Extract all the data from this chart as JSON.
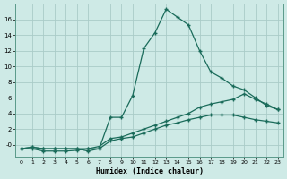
{
  "title": "",
  "xlabel": "Humidex (Indice chaleur)",
  "ylabel": "",
  "bg_color": "#ceeae6",
  "line_color": "#1a6b5a",
  "grid_color": "#aaccc8",
  "xlim": [
    -0.5,
    23.5
  ],
  "ylim": [
    -1.5,
    18
  ],
  "xticks": [
    0,
    1,
    2,
    3,
    4,
    5,
    6,
    7,
    8,
    9,
    10,
    11,
    12,
    13,
    14,
    15,
    16,
    17,
    18,
    19,
    20,
    21,
    22,
    23
  ],
  "yticks": [
    0,
    2,
    4,
    6,
    8,
    10,
    12,
    14,
    16
  ],
  "ytick_labels": [
    "-0",
    "2",
    "4",
    "6",
    "8",
    "10",
    "12",
    "14",
    "16"
  ],
  "line1_x": [
    0,
    1,
    2,
    3,
    4,
    5,
    6,
    7,
    8,
    9,
    10,
    11,
    12,
    13,
    14,
    15,
    16,
    17,
    18,
    19,
    20,
    21,
    22,
    23
  ],
  "line1_y": [
    -0.5,
    -0.5,
    -0.8,
    -0.8,
    -0.8,
    -0.7,
    -0.5,
    -0.5,
    3.5,
    3.5,
    6.3,
    12.3,
    14.3,
    17.3,
    16.3,
    15.3,
    12.0,
    9.3,
    8.5,
    7.5,
    7.0,
    6.0,
    5.0,
    4.5
  ],
  "line2_x": [
    0,
    1,
    2,
    3,
    4,
    5,
    6,
    7,
    8,
    9,
    10,
    11,
    12,
    13,
    14,
    15,
    16,
    17,
    18,
    19,
    20,
    21,
    22,
    23
  ],
  "line2_y": [
    -0.5,
    -0.3,
    -0.5,
    -0.5,
    -0.5,
    -0.5,
    -0.5,
    -0.2,
    0.8,
    1.0,
    1.5,
    2.0,
    2.5,
    3.0,
    3.5,
    4.0,
    4.8,
    5.2,
    5.5,
    5.8,
    6.5,
    5.8,
    5.2,
    4.5
  ],
  "line3_x": [
    0,
    1,
    2,
    3,
    4,
    5,
    6,
    7,
    8,
    9,
    10,
    11,
    12,
    13,
    14,
    15,
    16,
    17,
    18,
    19,
    20,
    21,
    22,
    23
  ],
  "line3_y": [
    -0.5,
    -0.3,
    -0.5,
    -0.5,
    -0.5,
    -0.5,
    -0.8,
    -0.5,
    0.5,
    0.8,
    1.0,
    1.5,
    2.0,
    2.5,
    2.8,
    3.2,
    3.5,
    3.8,
    3.8,
    3.8,
    3.5,
    3.2,
    3.0,
    2.8
  ]
}
